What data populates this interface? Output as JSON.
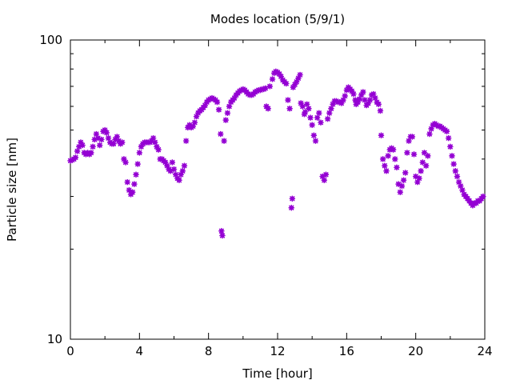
{
  "chart_data": {
    "type": "scatter",
    "title": "Modes location (5/9/1)",
    "xlabel": "Time [hour]",
    "ylabel": "Particle size [nm]",
    "xlim": [
      0,
      24
    ],
    "ylim": [
      10,
      100
    ],
    "y_scale": "log",
    "grid": false,
    "legend": "none",
    "marker_color": "#9400d3",
    "x_ticks": [
      "0",
      "4",
      "8",
      "12",
      "16",
      "20",
      "24"
    ],
    "y_ticks": [
      "10",
      "100"
    ],
    "series": [
      {
        "points": [
          [
            0.0,
            39.5
          ],
          [
            0.1,
            39.7
          ],
          [
            0.2,
            40.0
          ],
          [
            0.3,
            40.5
          ],
          [
            0.4,
            42.5
          ],
          [
            0.5,
            44.0
          ],
          [
            0.6,
            45.5
          ],
          [
            0.7,
            44.5
          ],
          [
            0.8,
            42.0
          ],
          [
            0.9,
            41.5
          ],
          [
            1.0,
            42.0
          ],
          [
            1.1,
            41.5
          ],
          [
            1.2,
            42.0
          ],
          [
            1.3,
            44.0
          ],
          [
            1.4,
            46.5
          ],
          [
            1.5,
            48.5
          ],
          [
            1.6,
            47.0
          ],
          [
            1.7,
            44.5
          ],
          [
            1.8,
            46.5
          ],
          [
            1.9,
            49.5
          ],
          [
            2.0,
            50.0
          ],
          [
            2.1,
            49.0
          ],
          [
            2.2,
            47.0
          ],
          [
            2.3,
            45.5
          ],
          [
            2.4,
            45.0
          ],
          [
            2.5,
            45.0
          ],
          [
            2.6,
            46.5
          ],
          [
            2.7,
            47.5
          ],
          [
            2.8,
            46.0
          ],
          [
            2.9,
            45.0
          ],
          [
            3.0,
            45.5
          ],
          [
            3.1,
            40.0
          ],
          [
            3.2,
            39.0
          ],
          [
            3.3,
            33.5
          ],
          [
            3.4,
            31.5
          ],
          [
            3.5,
            30.5
          ],
          [
            3.6,
            31.0
          ],
          [
            3.7,
            33.0
          ],
          [
            3.8,
            35.5
          ],
          [
            3.9,
            38.5
          ],
          [
            4.0,
            42.0
          ],
          [
            4.1,
            44.0
          ],
          [
            4.2,
            45.0
          ],
          [
            4.3,
            45.5
          ],
          [
            4.4,
            45.5
          ],
          [
            4.5,
            45.5
          ],
          [
            4.6,
            45.5
          ],
          [
            4.7,
            46.0
          ],
          [
            4.8,
            47.0
          ],
          [
            4.9,
            45.5
          ],
          [
            5.0,
            44.0
          ],
          [
            5.1,
            43.0
          ],
          [
            5.2,
            40.0
          ],
          [
            5.3,
            40.0
          ],
          [
            5.4,
            39.5
          ],
          [
            5.5,
            39.0
          ],
          [
            5.6,
            38.0
          ],
          [
            5.7,
            37.0
          ],
          [
            5.8,
            36.5
          ],
          [
            5.9,
            39.0
          ],
          [
            6.0,
            37.0
          ],
          [
            6.1,
            35.5
          ],
          [
            6.2,
            34.5
          ],
          [
            6.3,
            34.0
          ],
          [
            6.4,
            35.5
          ],
          [
            6.5,
            36.5
          ],
          [
            6.6,
            38.0
          ],
          [
            6.7,
            46.0
          ],
          [
            6.8,
            51.0
          ],
          [
            6.9,
            52.0
          ],
          [
            7.0,
            51.0
          ],
          [
            7.1,
            51.5
          ],
          [
            7.2,
            53.0
          ],
          [
            7.3,
            55.5
          ],
          [
            7.4,
            57.0
          ],
          [
            7.5,
            58.0
          ],
          [
            7.6,
            58.5
          ],
          [
            7.7,
            59.5
          ],
          [
            7.8,
            60.5
          ],
          [
            7.9,
            62.0
          ],
          [
            8.0,
            63.0
          ],
          [
            8.1,
            63.5
          ],
          [
            8.2,
            64.0
          ],
          [
            8.3,
            63.5
          ],
          [
            8.4,
            63.0
          ],
          [
            8.5,
            62.0
          ],
          [
            8.6,
            58.5
          ],
          [
            8.7,
            48.5
          ],
          [
            8.75,
            23.0
          ],
          [
            8.8,
            22.2
          ],
          [
            8.9,
            46.0
          ],
          [
            9.0,
            54.0
          ],
          [
            9.1,
            57.0
          ],
          [
            9.2,
            60.0
          ],
          [
            9.3,
            62.0
          ],
          [
            9.4,
            63.0
          ],
          [
            9.5,
            64.0
          ],
          [
            9.6,
            65.5
          ],
          [
            9.7,
            66.5
          ],
          [
            9.8,
            67.5
          ],
          [
            9.9,
            68.0
          ],
          [
            10.0,
            68.5
          ],
          [
            10.1,
            68.0
          ],
          [
            10.2,
            67.0
          ],
          [
            10.3,
            66.0
          ],
          [
            10.4,
            65.5
          ],
          [
            10.5,
            65.5
          ],
          [
            10.6,
            66.0
          ],
          [
            10.7,
            67.0
          ],
          [
            10.8,
            67.5
          ],
          [
            10.9,
            68.0
          ],
          [
            11.0,
            68.0
          ],
          [
            11.1,
            68.5
          ],
          [
            11.2,
            68.5
          ],
          [
            11.3,
            69.0
          ],
          [
            11.35,
            60.0
          ],
          [
            11.45,
            59.0
          ],
          [
            11.55,
            70.0
          ],
          [
            11.7,
            74.0
          ],
          [
            11.8,
            77.5
          ],
          [
            11.9,
            78.5
          ],
          [
            12.0,
            78.0
          ],
          [
            12.1,
            77.0
          ],
          [
            12.2,
            75.5
          ],
          [
            12.3,
            73.5
          ],
          [
            12.4,
            72.5
          ],
          [
            12.5,
            71.5
          ],
          [
            12.6,
            63.0
          ],
          [
            12.7,
            59.0
          ],
          [
            12.8,
            27.5
          ],
          [
            12.85,
            29.5
          ],
          [
            12.9,
            69.5
          ],
          [
            13.0,
            71.0
          ],
          [
            13.1,
            72.5
          ],
          [
            13.2,
            74.5
          ],
          [
            13.3,
            76.5
          ],
          [
            13.35,
            61.5
          ],
          [
            13.45,
            60.0
          ],
          [
            13.55,
            56.5
          ],
          [
            13.6,
            57.5
          ],
          [
            13.7,
            61.0
          ],
          [
            13.8,
            59.0
          ],
          [
            13.9,
            55.0
          ],
          [
            14.0,
            52.0
          ],
          [
            14.1,
            48.0
          ],
          [
            14.2,
            46.0
          ],
          [
            14.3,
            55.0
          ],
          [
            14.4,
            57.0
          ],
          [
            14.5,
            53.0
          ],
          [
            14.6,
            35.0
          ],
          [
            14.7,
            34.0
          ],
          [
            14.8,
            35.5
          ],
          [
            14.9,
            54.5
          ],
          [
            15.0,
            57.0
          ],
          [
            15.1,
            59.0
          ],
          [
            15.2,
            61.0
          ],
          [
            15.3,
            62.5
          ],
          [
            15.4,
            62.5
          ],
          [
            15.5,
            62.0
          ],
          [
            15.6,
            62.0
          ],
          [
            15.7,
            61.5
          ],
          [
            15.8,
            63.0
          ],
          [
            15.9,
            65.0
          ],
          [
            16.0,
            68.0
          ],
          [
            16.1,
            69.5
          ],
          [
            16.2,
            68.5
          ],
          [
            16.3,
            67.5
          ],
          [
            16.4,
            66.0
          ],
          [
            16.5,
            63.0
          ],
          [
            16.55,
            61.0
          ],
          [
            16.65,
            62.0
          ],
          [
            16.75,
            63.5
          ],
          [
            16.85,
            65.5
          ],
          [
            16.95,
            67.0
          ],
          [
            17.05,
            63.0
          ],
          [
            17.15,
            60.5
          ],
          [
            17.25,
            61.5
          ],
          [
            17.35,
            63.0
          ],
          [
            17.45,
            65.5
          ],
          [
            17.55,
            66.0
          ],
          [
            17.65,
            64.0
          ],
          [
            17.75,
            62.0
          ],
          [
            17.85,
            61.0
          ],
          [
            17.95,
            58.0
          ],
          [
            18.0,
            48.0
          ],
          [
            18.1,
            40.0
          ],
          [
            18.2,
            38.0
          ],
          [
            18.3,
            36.5
          ],
          [
            18.4,
            41.0
          ],
          [
            18.5,
            43.0
          ],
          [
            18.6,
            43.5
          ],
          [
            18.7,
            43.0
          ],
          [
            18.8,
            40.0
          ],
          [
            18.9,
            37.5
          ],
          [
            19.0,
            33.0
          ],
          [
            19.1,
            31.0
          ],
          [
            19.2,
            32.5
          ],
          [
            19.3,
            34.0
          ],
          [
            19.4,
            36.0
          ],
          [
            19.5,
            42.0
          ],
          [
            19.6,
            46.0
          ],
          [
            19.7,
            47.5
          ],
          [
            19.8,
            47.5
          ],
          [
            19.9,
            41.5
          ],
          [
            20.0,
            35.0
          ],
          [
            20.1,
            33.5
          ],
          [
            20.2,
            34.5
          ],
          [
            20.3,
            36.5
          ],
          [
            20.4,
            39.0
          ],
          [
            20.5,
            42.0
          ],
          [
            20.6,
            38.0
          ],
          [
            20.7,
            41.0
          ],
          [
            20.8,
            48.5
          ],
          [
            20.9,
            50.5
          ],
          [
            21.0,
            52.0
          ],
          [
            21.1,
            52.5
          ],
          [
            21.2,
            52.0
          ],
          [
            21.3,
            51.5
          ],
          [
            21.4,
            51.5
          ],
          [
            21.5,
            51.0
          ],
          [
            21.6,
            50.5
          ],
          [
            21.7,
            50.0
          ],
          [
            21.8,
            49.5
          ],
          [
            21.9,
            47.0
          ],
          [
            22.0,
            44.0
          ],
          [
            22.1,
            41.0
          ],
          [
            22.2,
            38.5
          ],
          [
            22.3,
            36.5
          ],
          [
            22.4,
            35.0
          ],
          [
            22.5,
            33.5
          ],
          [
            22.6,
            32.5
          ],
          [
            22.7,
            31.5
          ],
          [
            22.8,
            30.5
          ],
          [
            22.9,
            30.0
          ],
          [
            23.0,
            29.5
          ],
          [
            23.1,
            29.0
          ],
          [
            23.2,
            28.5
          ],
          [
            23.3,
            28.0
          ],
          [
            23.4,
            28.5
          ],
          [
            23.5,
            28.5
          ],
          [
            23.6,
            29.0
          ],
          [
            23.7,
            29.0
          ],
          [
            23.8,
            29.5
          ],
          [
            23.9,
            30.0
          ]
        ]
      }
    ]
  }
}
